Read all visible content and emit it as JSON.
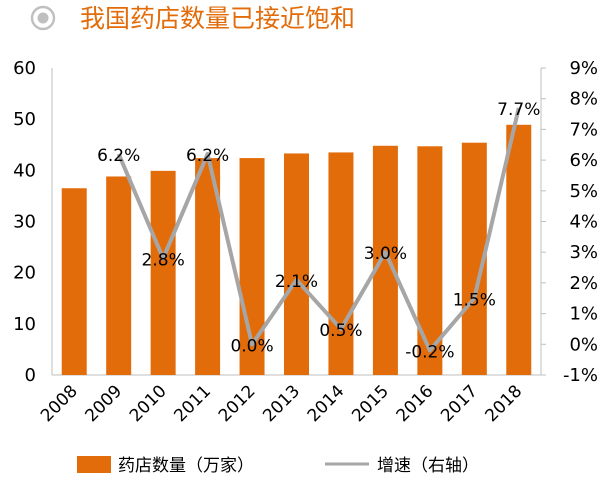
{
  "title": "我国药店数量已接近饱和",
  "colors": {
    "bar": "#E36C0A",
    "line": "#A6A6A6",
    "title": "#E36C0A",
    "icon": "#BFBFBF"
  },
  "icon": "radio-circle-icon",
  "chart_data": {
    "type": "bar",
    "categories": [
      "2008",
      "2009",
      "2010",
      "2011",
      "2012",
      "2013",
      "2014",
      "2015",
      "2016",
      "2017",
      "2018"
    ],
    "series": [
      {
        "name": "药店数量（万家）",
        "type": "bar",
        "axis": "left",
        "values": [
          36.5,
          38.8,
          39.9,
          42.4,
          42.4,
          43.3,
          43.5,
          44.8,
          44.7,
          45.4,
          48.9
        ]
      },
      {
        "name": "增速（右轴）",
        "type": "line",
        "axis": "right",
        "values": [
          null,
          6.2,
          2.8,
          6.2,
          0.0,
          2.1,
          0.5,
          3.0,
          -0.2,
          1.5,
          7.7
        ],
        "labels": [
          null,
          "6.2%",
          "2.8%",
          "6.2%",
          "0.0%",
          "2.1%",
          "0.5%",
          "3.0%",
          "-0.2%",
          "1.5%",
          "7.7%"
        ]
      }
    ],
    "y_left": {
      "lim": [
        0,
        60
      ],
      "ticks": [
        "0",
        "10",
        "20",
        "30",
        "40",
        "50",
        "60"
      ]
    },
    "y_right": {
      "lim": [
        -1,
        9
      ],
      "ticks": [
        "-1%",
        "0%",
        "1%",
        "2%",
        "3%",
        "4%",
        "5%",
        "6%",
        "7%",
        "8%",
        "9%"
      ]
    },
    "legend": {
      "position": "bottom",
      "items": [
        "药店数量（万家）",
        "增速（右轴）"
      ]
    },
    "grid": false
  }
}
